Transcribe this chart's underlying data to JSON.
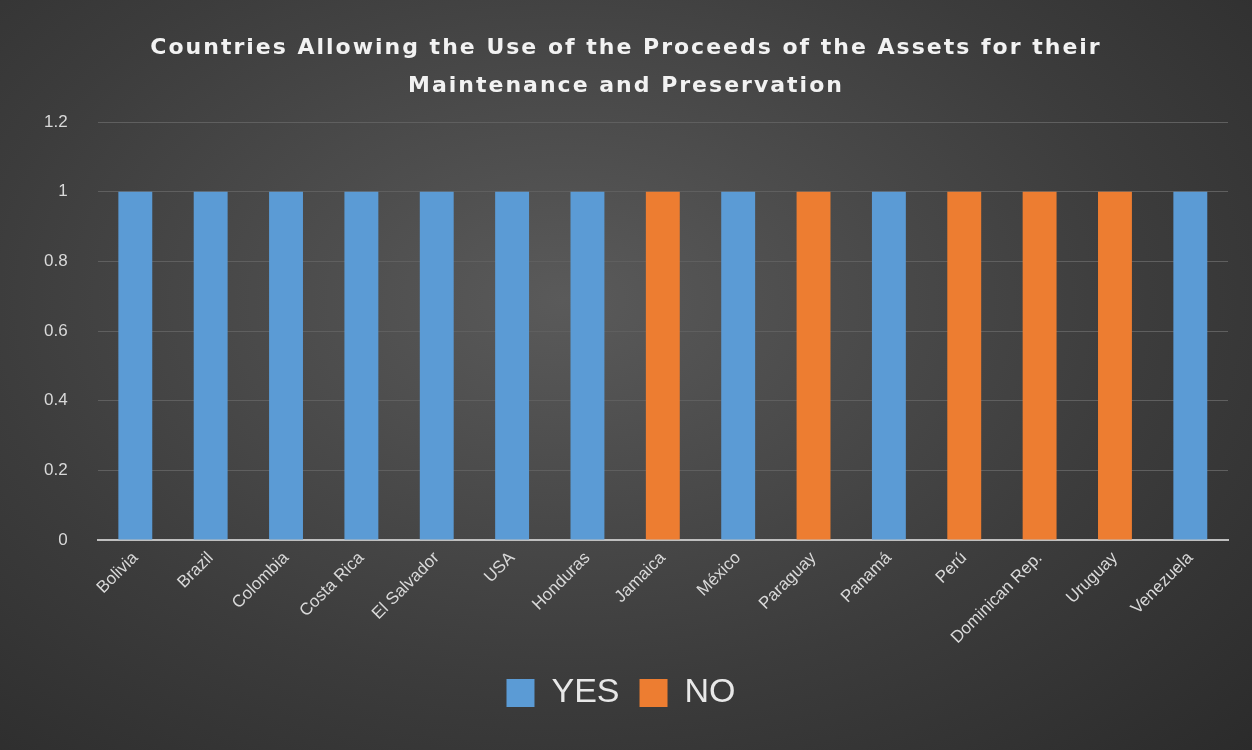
{
  "chart_data": {
    "type": "bar",
    "title": "Countries Allowing the Use of the Proceeds of the Assets for their Maintenance and Preservation",
    "categories": [
      "Bolivia",
      "Brazil",
      "Colombia",
      "Costa Rica",
      "El Salvador",
      "USA",
      "Honduras",
      "Jamaica",
      "México",
      "Paraguay",
      "Panamá",
      "Perú",
      "Dominican Rep.",
      "Uruguay",
      "Venezuela"
    ],
    "series": [
      {
        "name": "YES",
        "color": "#5b9bd5",
        "values": [
          1,
          1,
          1,
          1,
          1,
          1,
          1,
          null,
          1,
          null,
          1,
          null,
          null,
          null,
          1
        ]
      },
      {
        "name": "NO",
        "color": "#ed7d31",
        "values": [
          null,
          null,
          null,
          null,
          null,
          null,
          null,
          1,
          null,
          1,
          null,
          1,
          1,
          1,
          null
        ]
      }
    ],
    "stacked": true,
    "ylim": [
      0,
      1.2
    ],
    "yticks": [
      0,
      0.2,
      0.4,
      0.6,
      0.8,
      1,
      1.2
    ],
    "grid": "y",
    "legend": "bottom"
  }
}
